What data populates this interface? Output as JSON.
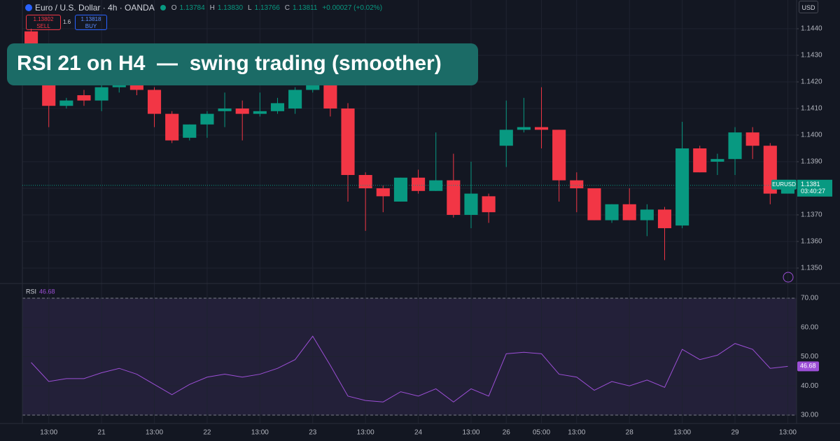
{
  "header": {
    "symbol": "Euro / U.S. Dollar · 4h · OANDA",
    "ohlc": [
      {
        "key": "O",
        "value": "1.13784"
      },
      {
        "key": "H",
        "value": "1.13830"
      },
      {
        "key": "L",
        "value": "1.13766"
      },
      {
        "key": "C",
        "value": "1.13811"
      }
    ],
    "change": "+0.00027 (+0.02%)"
  },
  "trade": {
    "sell_price": "1.13802",
    "sell": "SELL",
    "spread": "1.6",
    "buy_price": "1.13818",
    "buy": "BUY"
  },
  "currency": "USD",
  "banner": "RSI 21 on H4  —  swing trading (smoother)",
  "chart_data": [
    {
      "type": "candlestick",
      "categories": [
        null,
        "13:00",
        null,
        null,
        "21",
        null,
        null,
        "13:00",
        null,
        null,
        "22",
        null,
        null,
        "13:00",
        null,
        null,
        "23",
        null,
        null,
        "13:00",
        null,
        null,
        "24",
        null,
        null,
        "13:00",
        null,
        "26",
        null,
        "05:00",
        null,
        "13:00",
        null,
        null,
        "28",
        null,
        null,
        "13:00",
        null,
        null,
        "29",
        null,
        null,
        "13:00"
      ],
      "open": [
        1.1439,
        1.1419,
        1.1411,
        1.1415,
        1.1413,
        1.1418,
        1.1419,
        1.1417,
        1.1408,
        1.1399,
        1.1404,
        1.1409,
        1.141,
        1.1408,
        1.1409,
        1.141,
        1.1417,
        1.1419,
        1.141,
        1.1385,
        1.138,
        1.1375,
        1.1384,
        1.1379,
        1.1383,
        1.137,
        1.1377,
        1.1396,
        1.1402,
        1.1403,
        1.1402,
        1.1383,
        1.138,
        1.1368,
        1.1374,
        1.1368,
        1.1372,
        1.1366,
        1.1395,
        1.139,
        1.1391,
        1.1401,
        1.1396,
        1.1378
      ],
      "high": [
        1.144,
        1.142,
        1.1414,
        1.1417,
        1.1419,
        1.1422,
        1.142,
        1.1418,
        1.1409,
        1.1404,
        1.1409,
        1.1416,
        1.1413,
        1.1416,
        1.1414,
        1.1418,
        1.1422,
        1.142,
        1.1412,
        1.1386,
        1.1381,
        1.1384,
        1.1387,
        1.1401,
        1.1393,
        1.139,
        1.1378,
        1.1413,
        1.1414,
        1.1418,
        1.1402,
        1.1386,
        1.138,
        1.1374,
        1.138,
        1.1374,
        1.1373,
        1.1405,
        1.1396,
        1.1393,
        1.1403,
        1.1403,
        1.1397,
        1.1381
      ],
      "low": [
        1.1426,
        1.1403,
        1.141,
        1.1411,
        1.1409,
        1.1416,
        1.1415,
        1.1403,
        1.1397,
        1.1398,
        1.1399,
        1.1403,
        1.1398,
        1.1407,
        1.1408,
        1.1408,
        1.1416,
        1.1407,
        1.1375,
        1.1364,
        1.1371,
        1.1375,
        1.1378,
        1.1379,
        1.1369,
        1.1365,
        1.1367,
        1.1388,
        1.1401,
        1.1395,
        1.1375,
        1.1371,
        1.1368,
        1.1367,
        1.1368,
        1.1362,
        1.1353,
        1.1365,
        1.1386,
        1.1385,
        1.1385,
        1.1391,
        1.1374,
        1.1378
      ],
      "close": [
        1.1428,
        1.1411,
        1.1413,
        1.1413,
        1.1418,
        1.1419,
        1.1417,
        1.1408,
        1.1398,
        1.1404,
        1.1408,
        1.141,
        1.1408,
        1.1409,
        1.1412,
        1.1417,
        1.1419,
        1.141,
        1.1385,
        1.138,
        1.1377,
        1.1384,
        1.1379,
        1.1383,
        1.137,
        1.1378,
        1.1371,
        1.1402,
        1.1403,
        1.1402,
        1.1383,
        1.138,
        1.1368,
        1.1374,
        1.1368,
        1.1372,
        1.1365,
        1.1395,
        1.1386,
        1.1391,
        1.1401,
        1.1396,
        1.1378,
        1.1381
      ],
      "up_color": "#089981",
      "down_color": "#f23645",
      "ylim": [
        1.13442,
        1.14508
      ],
      "yticks": [
        {
          "value": 1.135,
          "label": "1.1350"
        },
        {
          "value": 1.136,
          "label": "1.1360"
        },
        {
          "value": 1.137,
          "label": "1.1370"
        },
        {
          "value": 1.138,
          "label": "1.1380"
        },
        {
          "value": 1.139,
          "label": "1.1390"
        },
        {
          "value": 1.14,
          "label": "1.1400"
        },
        {
          "value": 1.141,
          "label": "1.1410"
        },
        {
          "value": 1.142,
          "label": "1.1420"
        },
        {
          "value": 1.143,
          "label": "1.1430"
        },
        {
          "value": 1.144,
          "label": "1.1440"
        }
      ],
      "grid": true,
      "price_line": {
        "symbol": "EURUSD",
        "value": 1.13811,
        "label": "1.1381",
        "countdown": "03:40:27"
      }
    },
    {
      "type": "line",
      "title": "RSI",
      "series": [
        {
          "name": "RSI",
          "color": "#9c4fd6",
          "values": [
            48,
            41.5,
            42.5,
            42.5,
            44.5,
            46,
            44,
            40.5,
            37,
            40.5,
            43,
            44,
            43,
            44,
            46,
            49,
            57,
            47,
            36.5,
            35,
            34.5,
            38,
            36.5,
            39,
            34.5,
            39,
            36.5,
            51,
            51.5,
            51,
            44,
            43,
            38.5,
            41.5,
            40,
            42,
            39.5,
            52.5,
            49,
            50.5,
            54.5,
            52.5,
            46,
            46.68
          ]
        }
      ],
      "ylim": [
        27.13,
        75.03
      ],
      "yticks": [
        {
          "value": 30,
          "label": "30.00"
        },
        {
          "value": 40,
          "label": "40.00"
        },
        {
          "value": 50,
          "label": "50.00"
        },
        {
          "value": 60,
          "label": "60.00"
        },
        {
          "value": 70,
          "label": "70.00"
        }
      ],
      "band": {
        "from": 30,
        "to": 70,
        "color": "#7e57c2"
      }
    }
  ]
}
